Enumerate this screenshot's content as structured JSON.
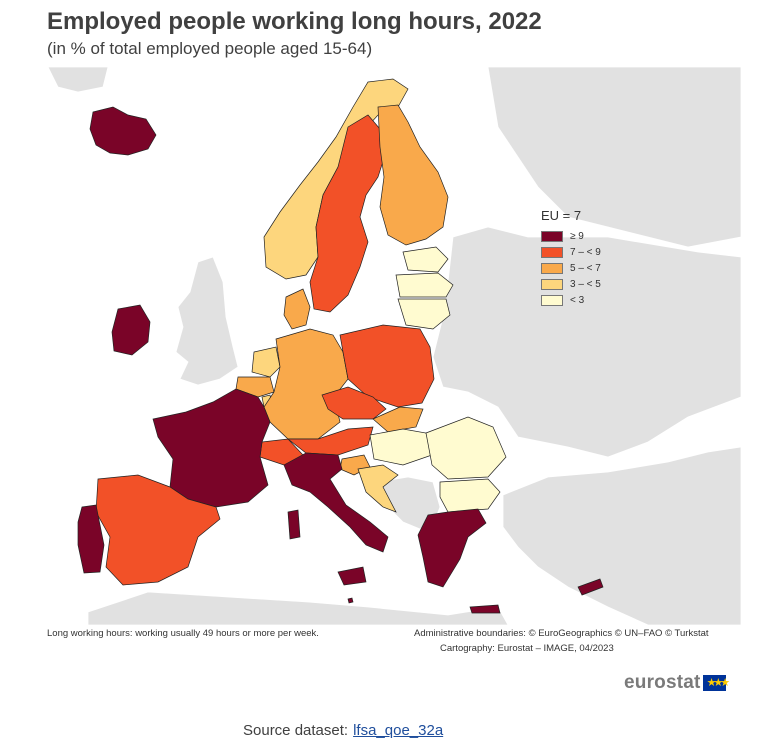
{
  "title": "Employed people working long hours, 2022",
  "subtitle": "(in % of total employed people aged 15-64)",
  "legend": {
    "title": "EU = 7",
    "items": [
      {
        "label": "≥ 9",
        "color": "#7a0428"
      },
      {
        "label": "7 – < 9",
        "color": "#f25128"
      },
      {
        "label": "5 – < 7",
        "color": "#f9a94b"
      },
      {
        "label": "3 – < 5",
        "color": "#fdd67d"
      },
      {
        "label": "< 3",
        "color": "#fffbd0"
      }
    ]
  },
  "no_data_color": "#e1e1e1",
  "country_classes": {
    "Iceland": "≥ 9",
    "Ireland": "≥ 9",
    "France": "≥ 9",
    "Italy": "≥ 9",
    "Greece": "≥ 9",
    "Portugal": "≥ 9",
    "Cyprus": "≥ 9",
    "Malta": "≥ 9",
    "Spain": "7 – < 9",
    "Sweden": "7 – < 9",
    "Poland": "7 – < 9",
    "Czechia": "7 – < 9",
    "Austria": "7 – < 9",
    "Switzerland": "7 – < 9",
    "Finland": "5 – < 7",
    "Germany": "5 – < 7",
    "Denmark": "5 – < 7",
    "Belgium": "5 – < 7",
    "Slovakia": "5 – < 7",
    "Slovenia": "5 – < 7",
    "Norway": "3 – < 5",
    "Netherlands": "3 – < 5",
    "Luxembourg": "3 – < 5",
    "Croatia": "3 – < 5",
    "Estonia": "< 3",
    "Latvia": "< 3",
    "Lithuania": "< 3",
    "Hungary": "< 3",
    "Romania": "< 3",
    "Bulgaria": "< 3"
  },
  "notes": {
    "left": "Long working hours: working usually 49 hours or more per week.",
    "right_line1": "Administrative boundaries: © EuroGeographics © UN–FAO © Turkstat",
    "right_line2": "Cartography: Eurostat – IMAGE, 04/2023"
  },
  "brand": {
    "text": "eurostat",
    "flag_stars": "★★★"
  },
  "source": {
    "prefix": "Source dataset:",
    "link_text": "lfsa_qoe_32a"
  }
}
